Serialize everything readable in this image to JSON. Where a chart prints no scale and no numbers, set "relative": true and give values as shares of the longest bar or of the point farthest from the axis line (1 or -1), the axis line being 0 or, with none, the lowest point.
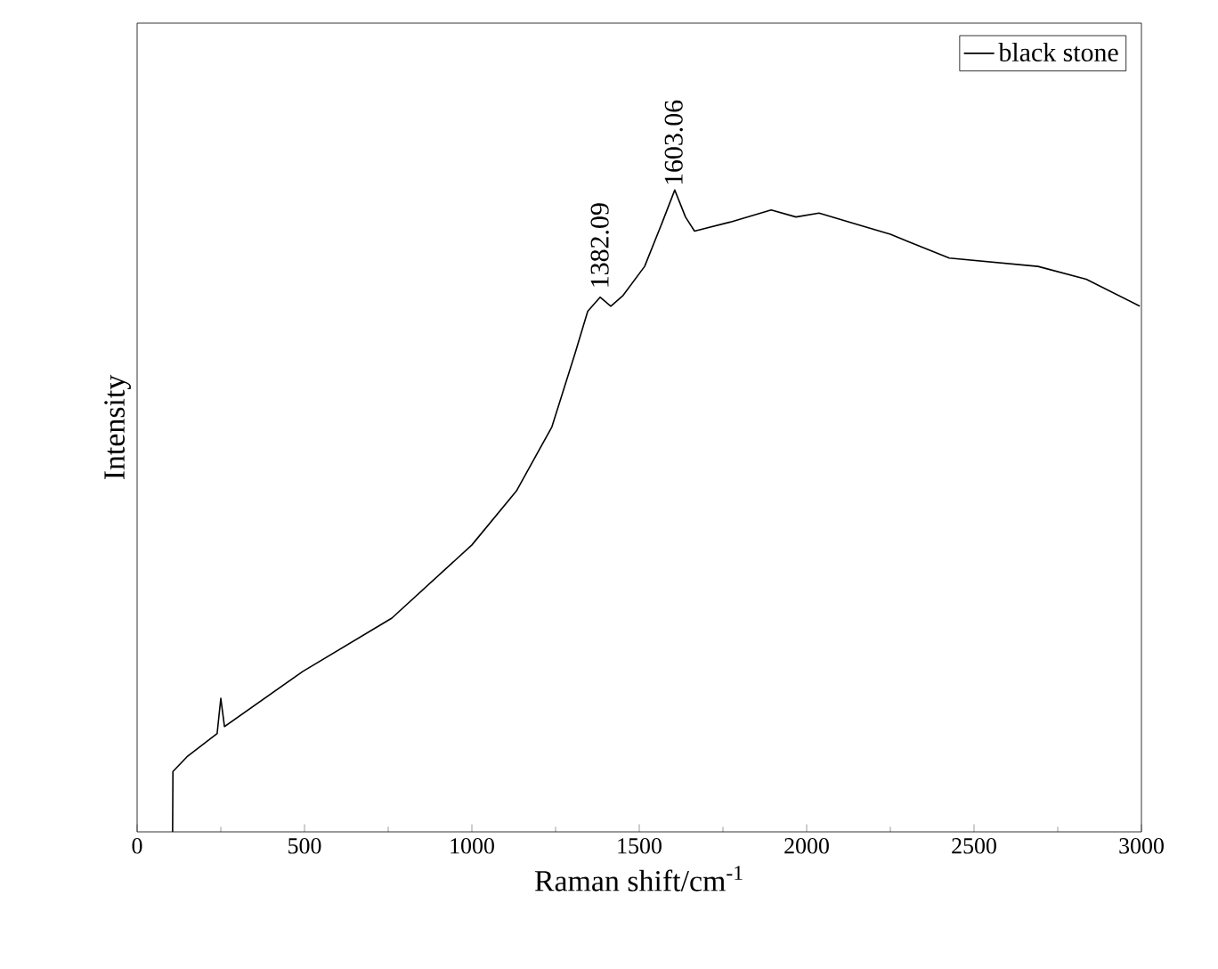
{
  "chart_data": {
    "type": "line",
    "xlabel": "Raman shift/cm$^{-1}$",
    "ylabel": "Intensity",
    "relative": true,
    "xlim": [
      0,
      3000
    ],
    "xticks": [
      0,
      500,
      1000,
      1500,
      2000,
      2500,
      3000
    ],
    "legend": "top right",
    "tick_labels": "x",
    "series": [
      {
        "name": "black stone",
        "color": "#000000",
        "x": [
          106,
          107,
          149,
          239,
          250,
          261,
          495,
          761,
          1000,
          1133,
          1239,
          1309,
          1346,
          1383,
          1415,
          1452,
          1516,
          1569,
          1606,
          1638,
          1665,
          1771,
          1894,
          1968,
          2037,
          2250,
          2426,
          2691,
          2835,
          2995
        ],
        "values": [
          0,
          0.094,
          0.117,
          0.153,
          0.208,
          0.164,
          0.25,
          0.333,
          0.447,
          0.531,
          0.631,
          0.747,
          0.811,
          0.833,
          0.819,
          0.836,
          0.881,
          0.95,
          1.0,
          0.958,
          0.936,
          0.95,
          0.969,
          0.958,
          0.964,
          0.931,
          0.894,
          0.881,
          0.861,
          0.819
        ]
      }
    ],
    "annotations": [
      {
        "text": "1382.09",
        "x": 1382.09,
        "y": 0.84
      },
      {
        "text": "1603.06",
        "x": 1603.06,
        "y": 1.0
      }
    ]
  }
}
